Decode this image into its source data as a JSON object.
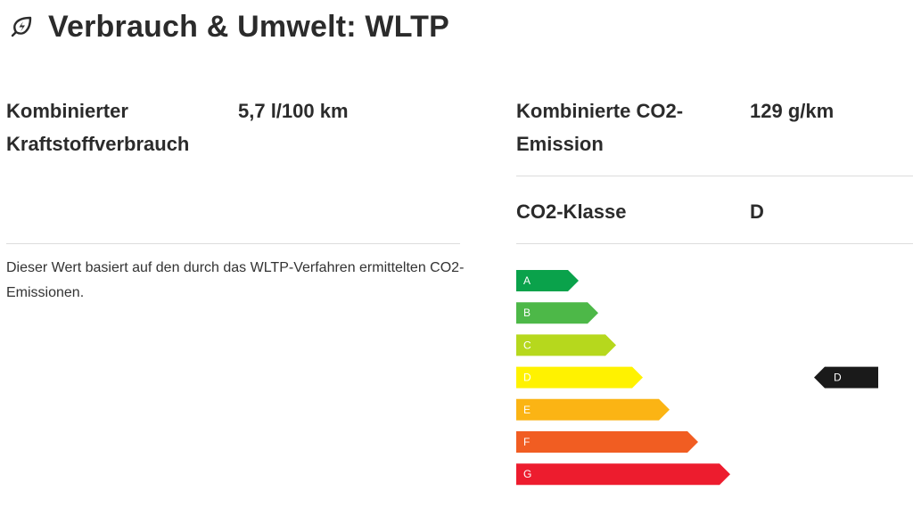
{
  "header": {
    "title": "Verbrauch & Umwelt: WLTP",
    "icon": "leaf-bolt-icon"
  },
  "consumption": {
    "label_line1": "Kombinierter",
    "label_line2": "Kraftstoffverbrauch",
    "value": "5,7 l/100 km"
  },
  "emission": {
    "label_line1": "Kombinierte CO2-",
    "label_line2": "Emission",
    "value": "129 g/km"
  },
  "co2_class": {
    "label": "CO2-Klasse",
    "value": "D"
  },
  "note": "Dieser Wert basiert auf den durch das WLTP-Verfahren ermittelten CO2-Emissionen.",
  "energy_scale": {
    "classes": [
      {
        "letter": "A",
        "color": "#0aa24b"
      },
      {
        "letter": "B",
        "color": "#4db848"
      },
      {
        "letter": "C",
        "color": "#b6d81d"
      },
      {
        "letter": "D",
        "color": "#fff200"
      },
      {
        "letter": "E",
        "color": "#fbb414"
      },
      {
        "letter": "F",
        "color": "#f15d22"
      },
      {
        "letter": "G",
        "color": "#ed1c2e"
      }
    ],
    "marker": {
      "letter": "D",
      "color": "#1a1a1a"
    }
  }
}
